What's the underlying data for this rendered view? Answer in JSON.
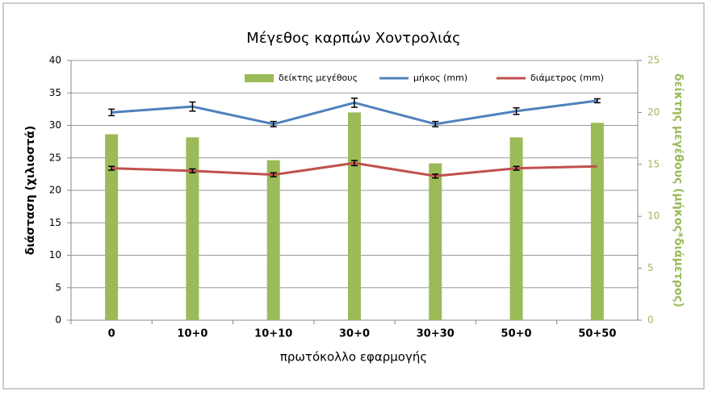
{
  "chart_data": {
    "type": "bar-line",
    "title": "Μέγεθος καρπών Χοντρολιάς",
    "x_label": "πρωτόκολλο εφαρμογής",
    "y_label": "διάσταση (χιλιοστά)",
    "y2_label": "δείκτης μεγέθους (μήκος*διάμετρος)",
    "categories": [
      "0",
      "10+0",
      "10+10",
      "30+0",
      "30+30",
      "50+0",
      "50+50"
    ],
    "series": [
      {
        "name": "δείκτης μεγέθους",
        "kind": "bar",
        "axis": "y2",
        "color": "#9bbb59",
        "values": [
          17.9,
          17.6,
          15.4,
          20.0,
          15.1,
          17.6,
          19.0
        ]
      },
      {
        "name": "μήκος (mm)",
        "kind": "line",
        "color": "#4f81bd",
        "values": [
          32.0,
          32.9,
          30.2,
          33.5,
          30.2,
          32.2,
          33.8
        ],
        "errors": [
          0.5,
          0.7,
          0.4,
          0.7,
          0.4,
          0.5,
          0.3
        ]
      },
      {
        "name": "διάμετρος (mm)",
        "kind": "line",
        "color": "#c0504d",
        "values": [
          23.4,
          23.0,
          22.4,
          24.2,
          22.2,
          23.4,
          23.7
        ],
        "errors": [
          0.3,
          0.3,
          0.3,
          0.4,
          0.3,
          0.3,
          null
        ]
      }
    ],
    "ylim": [
      0,
      40
    ],
    "yticks": [
      0,
      5,
      10,
      15,
      20,
      25,
      30,
      35,
      40
    ],
    "y2lim": [
      0,
      25
    ],
    "y2ticks": [
      0,
      5,
      10,
      15,
      20,
      25
    ],
    "grid": true,
    "legend": "top"
  }
}
